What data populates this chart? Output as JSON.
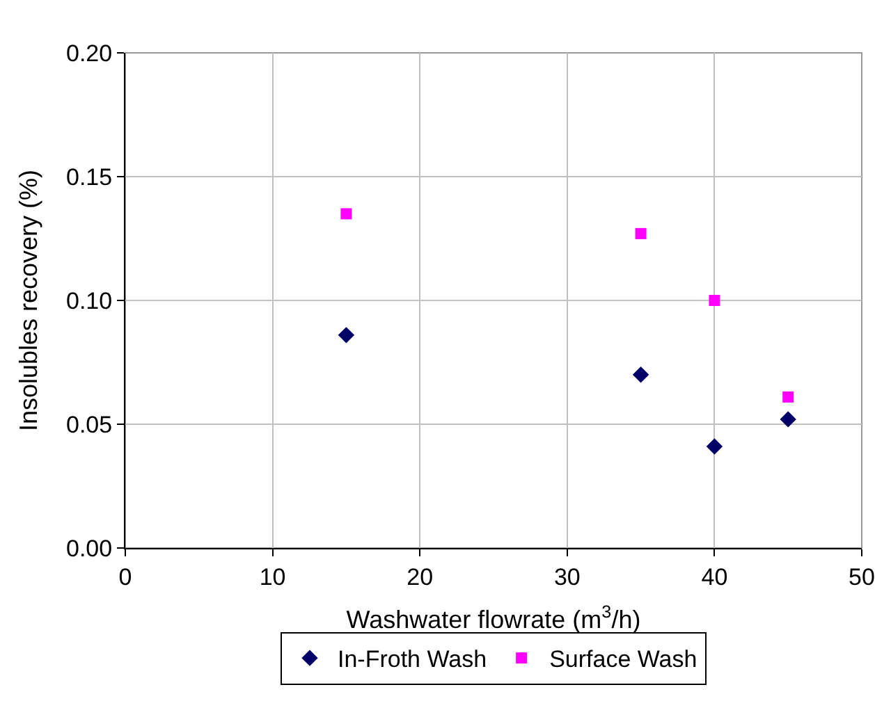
{
  "chart_data": {
    "type": "scatter",
    "xlabel": "Washwater flowrate (m$^{3}$/h)",
    "ylabel": "Insolubles recovery (%)",
    "xlim": [
      0,
      50
    ],
    "xticks": [
      0,
      10,
      20,
      30,
      40,
      50
    ],
    "ylim": [
      0,
      0.2
    ],
    "yticks": [
      {
        "value": 0,
        "label": "0.00"
      },
      {
        "value": 0.05,
        "label": "0.05"
      },
      {
        "value": 0.1,
        "label": "0.10"
      },
      {
        "value": 0.15,
        "label": "0.15"
      },
      {
        "value": 0.2,
        "label": "0.20"
      }
    ],
    "grid": true,
    "legend": "bottom",
    "series": [
      {
        "name": "In-Froth Wash",
        "color": "#000066",
        "marker": "diamond",
        "x": [
          15,
          35,
          40,
          45
        ],
        "values": [
          0.086,
          0.07,
          0.041,
          0.052
        ]
      },
      {
        "name": "Surface Wash",
        "color": "#ff00ff",
        "marker": "square",
        "x": [
          15,
          35,
          40,
          45
        ],
        "values": [
          0.135,
          0.127,
          0.1,
          0.061
        ]
      }
    ]
  }
}
